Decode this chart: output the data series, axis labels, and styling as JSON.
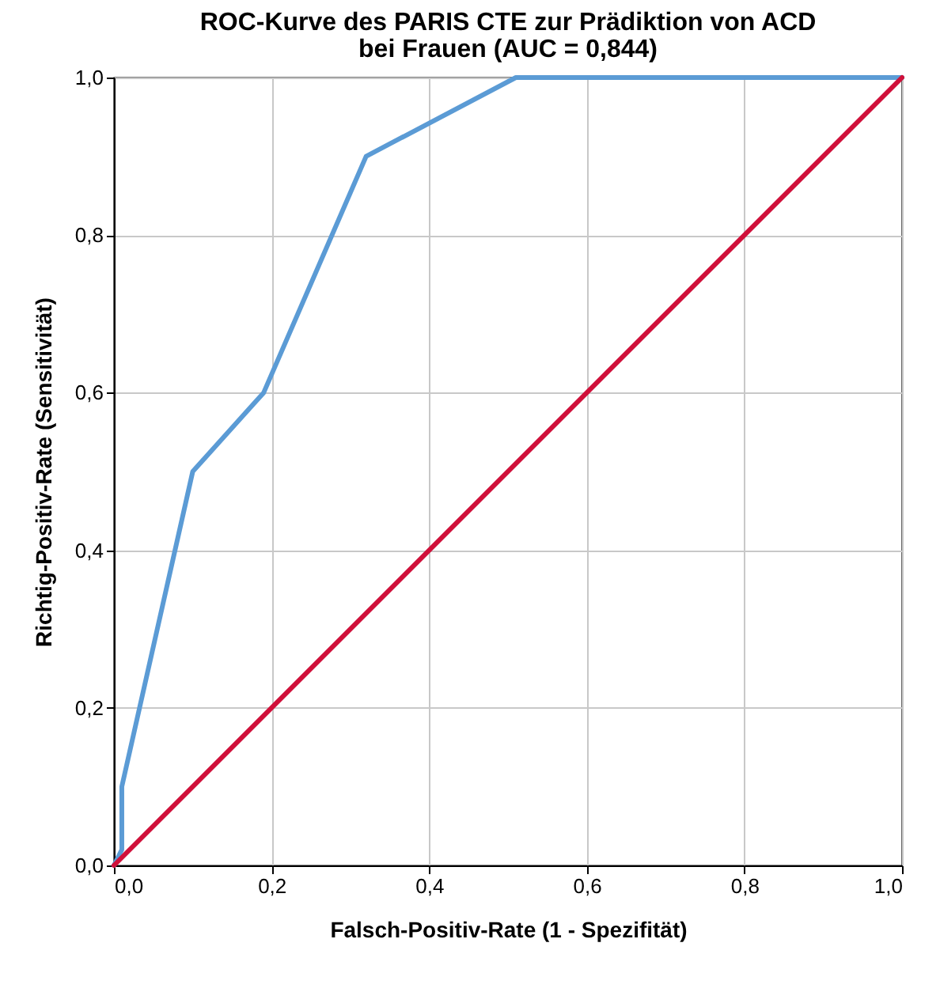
{
  "chart_data": {
    "type": "line",
    "title": "ROC-Kurve des PARIS CTE zur Prädiktion von ACD\nbei Frauen (AUC = 0,844)",
    "xlabel": "Falsch-Positiv-Rate (1 - Spezifität)",
    "ylabel": "Richtig-Positiv-Rate (Sensitivität)",
    "series": [
      {
        "color": "#5b9bd5",
        "x": [
          0,
          0.01,
          0.01,
          0.1,
          0.19,
          0.32,
          0.51,
          1
        ],
        "values": [
          0,
          0.02,
          0.1,
          0.5,
          0.6,
          0.9,
          1,
          1
        ]
      },
      {
        "color": "#d0103a",
        "x": [
          0,
          1
        ],
        "values": [
          0,
          1
        ]
      }
    ],
    "xlim": [
      0,
      1
    ],
    "ylim": [
      0,
      1
    ],
    "xticks": [
      {
        "value": 0,
        "label": "0,0"
      },
      {
        "value": 0.2,
        "label": "0,2"
      },
      {
        "value": 0.4,
        "label": "0,4"
      },
      {
        "value": 0.6,
        "label": "0,6"
      },
      {
        "value": 0.8,
        "label": "0,8"
      },
      {
        "value": 1,
        "label": "1,0"
      }
    ],
    "yticks": [
      {
        "value": 0,
        "label": "0,0"
      },
      {
        "value": 0.2,
        "label": "0,2"
      },
      {
        "value": 0.4,
        "label": "0,4"
      },
      {
        "value": 0.6,
        "label": "0,6"
      },
      {
        "value": 0.8,
        "label": "0,8"
      },
      {
        "value": 1,
        "label": "1,0"
      }
    ],
    "grid": true,
    "marker": "none",
    "line_style": "solid"
  }
}
